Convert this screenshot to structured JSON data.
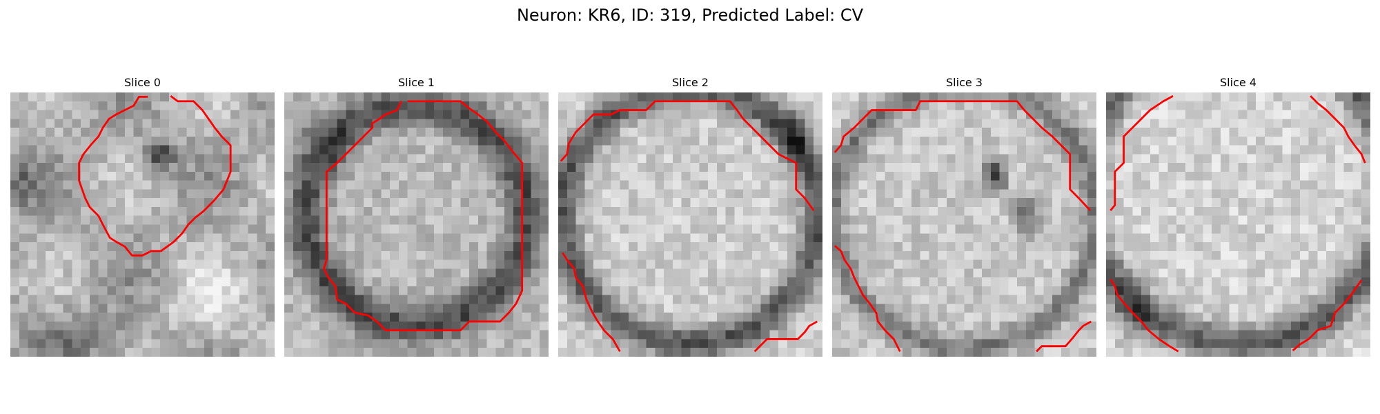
{
  "figure": {
    "title": "Neuron: KR6, ID: 319, Predicted Label: CV"
  },
  "panels": [
    {
      "title": "Slice 0"
    },
    {
      "title": "Slice 1"
    },
    {
      "title": "Slice 2"
    },
    {
      "title": "Slice 3"
    },
    {
      "title": "Slice 4"
    }
  ],
  "colors": {
    "contour": "#ff0000",
    "background": "#ffffff"
  },
  "image": {
    "colormap": "gray",
    "grid_size": 30,
    "description": "grayscale electron microscopy patches"
  }
}
